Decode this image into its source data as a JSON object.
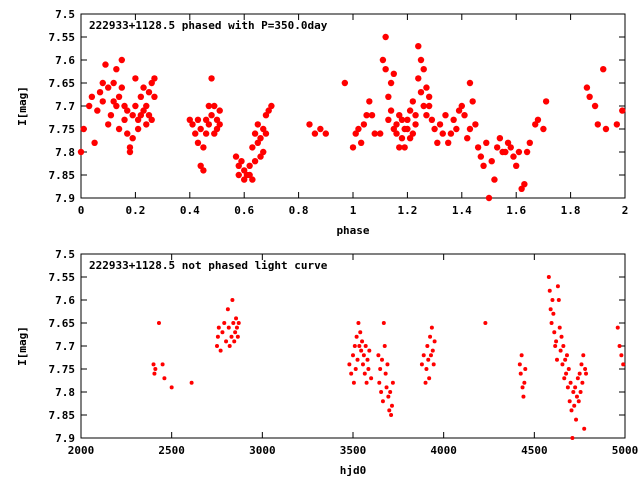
{
  "chart_data": [
    {
      "type": "scatter",
      "annotation": "222933+1128.5 phased with P=350.0day",
      "xlabel": "phase",
      "ylabel": "I[mag]",
      "xlim": [
        0,
        2
      ],
      "ylim": [
        7.9,
        7.5
      ],
      "y_inverted": true,
      "xticks": [
        0,
        0.2,
        0.4,
        0.6,
        0.8,
        1,
        1.2,
        1.4,
        1.6,
        1.8,
        2
      ],
      "xtick_labels": [
        "0",
        "0.2",
        "0.4",
        "0.6",
        "0.8",
        "1",
        "1.2",
        "1.4",
        "1.6",
        "1.8",
        "2"
      ],
      "yticks": [
        7.5,
        7.55,
        7.6,
        7.65,
        7.7,
        7.75,
        7.8,
        7.85,
        7.9
      ],
      "ytick_labels": [
        "7.5",
        "7.55",
        "7.6",
        "7.65",
        "7.7",
        "7.75",
        "7.8",
        "7.85",
        "7.9"
      ],
      "grid": false,
      "marker_color": "#ff0000",
      "marker": "filled-circle-large",
      "points": [
        [
          0.0,
          7.8
        ],
        [
          0.01,
          7.75
        ],
        [
          0.03,
          7.7
        ],
        [
          0.04,
          7.68
        ],
        [
          0.05,
          7.78
        ],
        [
          0.06,
          7.71
        ],
        [
          0.07,
          7.67
        ],
        [
          0.08,
          7.65
        ],
        [
          0.08,
          7.69
        ],
        [
          0.09,
          7.61
        ],
        [
          0.1,
          7.66
        ],
        [
          0.1,
          7.74
        ],
        [
          0.11,
          7.72
        ],
        [
          0.12,
          7.69
        ],
        [
          0.12,
          7.65
        ],
        [
          0.13,
          7.62
        ],
        [
          0.13,
          7.7
        ],
        [
          0.14,
          7.68
        ],
        [
          0.14,
          7.75
        ],
        [
          0.15,
          7.6
        ],
        [
          0.15,
          7.66
        ],
        [
          0.16,
          7.7
        ],
        [
          0.16,
          7.73
        ],
        [
          0.17,
          7.71
        ],
        [
          0.17,
          7.76
        ],
        [
          0.18,
          7.79
        ],
        [
          0.18,
          7.8
        ],
        [
          0.19,
          7.72
        ],
        [
          0.19,
          7.77
        ],
        [
          0.2,
          7.64
        ],
        [
          0.2,
          7.7
        ],
        [
          0.21,
          7.73
        ],
        [
          0.21,
          7.75
        ],
        [
          0.22,
          7.68
        ],
        [
          0.22,
          7.72
        ],
        [
          0.23,
          7.66
        ],
        [
          0.23,
          7.71
        ],
        [
          0.24,
          7.7
        ],
        [
          0.24,
          7.74
        ],
        [
          0.25,
          7.67
        ],
        [
          0.25,
          7.72
        ],
        [
          0.26,
          7.73
        ],
        [
          0.26,
          7.65
        ],
        [
          0.27,
          7.68
        ],
        [
          0.27,
          7.64
        ],
        [
          0.4,
          7.73
        ],
        [
          0.41,
          7.74
        ],
        [
          0.42,
          7.76
        ],
        [
          0.43,
          7.73
        ],
        [
          0.43,
          7.78
        ],
        [
          0.44,
          7.75
        ],
        [
          0.44,
          7.83
        ],
        [
          0.45,
          7.79
        ],
        [
          0.45,
          7.84
        ],
        [
          0.46,
          7.73
        ],
        [
          0.46,
          7.76
        ],
        [
          0.47,
          7.7
        ],
        [
          0.47,
          7.74
        ],
        [
          0.48,
          7.64
        ],
        [
          0.48,
          7.72
        ],
        [
          0.49,
          7.7
        ],
        [
          0.49,
          7.76
        ],
        [
          0.5,
          7.73
        ],
        [
          0.5,
          7.75
        ],
        [
          0.51,
          7.71
        ],
        [
          0.51,
          7.74
        ],
        [
          0.57,
          7.81
        ],
        [
          0.58,
          7.83
        ],
        [
          0.58,
          7.85
        ],
        [
          0.59,
          7.82
        ],
        [
          0.6,
          7.84
        ],
        [
          0.6,
          7.86
        ],
        [
          0.61,
          7.85
        ],
        [
          0.62,
          7.83
        ],
        [
          0.62,
          7.85
        ],
        [
          0.63,
          7.79
        ],
        [
          0.63,
          7.86
        ],
        [
          0.64,
          7.76
        ],
        [
          0.64,
          7.82
        ],
        [
          0.65,
          7.74
        ],
        [
          0.65,
          7.78
        ],
        [
          0.66,
          7.77
        ],
        [
          0.66,
          7.81
        ],
        [
          0.67,
          7.75
        ],
        [
          0.67,
          7.8
        ],
        [
          0.68,
          7.72
        ],
        [
          0.68,
          7.76
        ],
        [
          0.69,
          7.71
        ],
        [
          0.7,
          7.7
        ],
        [
          0.84,
          7.74
        ],
        [
          0.86,
          7.76
        ],
        [
          0.88,
          7.75
        ],
        [
          0.9,
          7.76
        ],
        [
          0.97,
          7.65
        ],
        [
          1.0,
          7.79
        ],
        [
          1.01,
          7.76
        ],
        [
          1.02,
          7.75
        ],
        [
          1.03,
          7.78
        ],
        [
          1.04,
          7.74
        ],
        [
          1.05,
          7.72
        ],
        [
          1.06,
          7.69
        ],
        [
          1.07,
          7.72
        ],
        [
          1.08,
          7.76
        ],
        [
          1.1,
          7.76
        ],
        [
          1.11,
          7.6
        ],
        [
          1.12,
          7.55
        ],
        [
          1.12,
          7.62
        ],
        [
          1.13,
          7.68
        ],
        [
          1.13,
          7.73
        ],
        [
          1.14,
          7.65
        ],
        [
          1.14,
          7.71
        ],
        [
          1.15,
          7.63
        ],
        [
          1.15,
          7.75
        ],
        [
          1.16,
          7.74
        ],
        [
          1.16,
          7.76
        ],
        [
          1.17,
          7.72
        ],
        [
          1.17,
          7.79
        ],
        [
          1.18,
          7.73
        ],
        [
          1.18,
          7.77
        ],
        [
          1.19,
          7.75
        ],
        [
          1.19,
          7.79
        ],
        [
          1.2,
          7.73
        ],
        [
          1.2,
          7.75
        ],
        [
          1.21,
          7.71
        ],
        [
          1.21,
          7.77
        ],
        [
          1.22,
          7.69
        ],
        [
          1.22,
          7.76
        ],
        [
          1.23,
          7.74
        ],
        [
          1.23,
          7.72
        ],
        [
          1.24,
          7.57
        ],
        [
          1.24,
          7.64
        ],
        [
          1.25,
          7.6
        ],
        [
          1.25,
          7.67
        ],
        [
          1.26,
          7.62
        ],
        [
          1.26,
          7.7
        ],
        [
          1.27,
          7.66
        ],
        [
          1.27,
          7.72
        ],
        [
          1.28,
          7.68
        ],
        [
          1.28,
          7.7
        ],
        [
          1.29,
          7.73
        ],
        [
          1.3,
          7.75
        ],
        [
          1.31,
          7.78
        ],
        [
          1.32,
          7.74
        ],
        [
          1.33,
          7.76
        ],
        [
          1.34,
          7.72
        ],
        [
          1.35,
          7.78
        ],
        [
          1.36,
          7.76
        ],
        [
          1.37,
          7.73
        ],
        [
          1.38,
          7.75
        ],
        [
          1.39,
          7.71
        ],
        [
          1.4,
          7.7
        ],
        [
          1.41,
          7.72
        ],
        [
          1.42,
          7.77
        ],
        [
          1.43,
          7.65
        ],
        [
          1.43,
          7.75
        ],
        [
          1.44,
          7.69
        ],
        [
          1.45,
          7.74
        ],
        [
          1.46,
          7.79
        ],
        [
          1.47,
          7.81
        ],
        [
          1.48,
          7.83
        ],
        [
          1.49,
          7.78
        ],
        [
          1.5,
          7.9
        ],
        [
          1.51,
          7.82
        ],
        [
          1.52,
          7.86
        ],
        [
          1.53,
          7.79
        ],
        [
          1.54,
          7.77
        ],
        [
          1.55,
          7.8
        ],
        [
          1.56,
          7.8
        ],
        [
          1.57,
          7.78
        ],
        [
          1.58,
          7.79
        ],
        [
          1.59,
          7.81
        ],
        [
          1.6,
          7.83
        ],
        [
          1.61,
          7.8
        ],
        [
          1.62,
          7.88
        ],
        [
          1.63,
          7.87
        ],
        [
          1.64,
          7.8
        ],
        [
          1.65,
          7.78
        ],
        [
          1.67,
          7.74
        ],
        [
          1.68,
          7.73
        ],
        [
          1.7,
          7.75
        ],
        [
          1.71,
          7.69
        ],
        [
          1.86,
          7.66
        ],
        [
          1.87,
          7.68
        ],
        [
          1.89,
          7.7
        ],
        [
          1.9,
          7.74
        ],
        [
          1.92,
          7.62
        ],
        [
          1.93,
          7.75
        ],
        [
          1.97,
          7.74
        ],
        [
          1.99,
          7.71
        ]
      ]
    },
    {
      "type": "scatter",
      "annotation": "222933+1128.5 not phased light curve",
      "xlabel": "hjd0",
      "ylabel": "I[mag]",
      "xlim": [
        2000,
        5000
      ],
      "ylim": [
        7.9,
        7.5
      ],
      "y_inverted": true,
      "xticks": [
        2000,
        2500,
        3000,
        3500,
        4000,
        4500,
        5000
      ],
      "xtick_labels": [
        "2000",
        "2500",
        "3000",
        "3500",
        "4000",
        "4500",
        "5000"
      ],
      "yticks": [
        7.5,
        7.55,
        7.6,
        7.65,
        7.7,
        7.75,
        7.8,
        7.85,
        7.9
      ],
      "ytick_labels": [
        "7.5",
        "7.55",
        "7.6",
        "7.65",
        "7.7",
        "7.75",
        "7.8",
        "7.85",
        "7.9"
      ],
      "grid": false,
      "marker_color": "#ff0000",
      "marker": "filled-circle-small",
      "points": [
        [
          2400,
          7.74
        ],
        [
          2405,
          7.76
        ],
        [
          2410,
          7.75
        ],
        [
          2430,
          7.65
        ],
        [
          2450,
          7.74
        ],
        [
          2460,
          7.77
        ],
        [
          2500,
          7.79
        ],
        [
          2610,
          7.78
        ],
        [
          2750,
          7.7
        ],
        [
          2755,
          7.68
        ],
        [
          2760,
          7.66
        ],
        [
          2770,
          7.71
        ],
        [
          2780,
          7.67
        ],
        [
          2790,
          7.65
        ],
        [
          2800,
          7.69
        ],
        [
          2810,
          7.62
        ],
        [
          2815,
          7.66
        ],
        [
          2820,
          7.7
        ],
        [
          2830,
          7.68
        ],
        [
          2835,
          7.6
        ],
        [
          2840,
          7.65
        ],
        [
          2845,
          7.69
        ],
        [
          2850,
          7.67
        ],
        [
          2855,
          7.64
        ],
        [
          2860,
          7.66
        ],
        [
          2865,
          7.68
        ],
        [
          2870,
          7.65
        ],
        [
          3480,
          7.74
        ],
        [
          3490,
          7.76
        ],
        [
          3500,
          7.72
        ],
        [
          3505,
          7.78
        ],
        [
          3510,
          7.7
        ],
        [
          3515,
          7.75
        ],
        [
          3520,
          7.68
        ],
        [
          3525,
          7.73
        ],
        [
          3530,
          7.65
        ],
        [
          3535,
          7.7
        ],
        [
          3540,
          7.67
        ],
        [
          3545,
          7.71
        ],
        [
          3550,
          7.69
        ],
        [
          3555,
          7.74
        ],
        [
          3560,
          7.72
        ],
        [
          3565,
          7.76
        ],
        [
          3570,
          7.7
        ],
        [
          3575,
          7.78
        ],
        [
          3580,
          7.73
        ],
        [
          3585,
          7.75
        ],
        [
          3590,
          7.71
        ],
        [
          3600,
          7.77
        ],
        [
          3640,
          7.72
        ],
        [
          3645,
          7.78
        ],
        [
          3650,
          7.75
        ],
        [
          3655,
          7.8
        ],
        [
          3660,
          7.73
        ],
        [
          3665,
          7.82
        ],
        [
          3670,
          7.65
        ],
        [
          3675,
          7.7
        ],
        [
          3680,
          7.76
        ],
        [
          3685,
          7.79
        ],
        [
          3690,
          7.74
        ],
        [
          3695,
          7.81
        ],
        [
          3700,
          7.84
        ],
        [
          3705,
          7.8
        ],
        [
          3710,
          7.85
        ],
        [
          3715,
          7.83
        ],
        [
          3720,
          7.78
        ],
        [
          3880,
          7.74
        ],
        [
          3890,
          7.72
        ],
        [
          3900,
          7.78
        ],
        [
          3905,
          7.75
        ],
        [
          3910,
          7.7
        ],
        [
          3915,
          7.73
        ],
        [
          3920,
          7.77
        ],
        [
          3925,
          7.68
        ],
        [
          3930,
          7.72
        ],
        [
          3935,
          7.66
        ],
        [
          3940,
          7.71
        ],
        [
          3945,
          7.74
        ],
        [
          3950,
          7.69
        ],
        [
          4230,
          7.65
        ],
        [
          4420,
          7.74
        ],
        [
          4425,
          7.76
        ],
        [
          4430,
          7.72
        ],
        [
          4435,
          7.79
        ],
        [
          4440,
          7.81
        ],
        [
          4445,
          7.78
        ],
        [
          4450,
          7.75
        ],
        [
          4580,
          7.55
        ],
        [
          4585,
          7.58
        ],
        [
          4590,
          7.62
        ],
        [
          4595,
          7.65
        ],
        [
          4600,
          7.6
        ],
        [
          4605,
          7.63
        ],
        [
          4610,
          7.67
        ],
        [
          4615,
          7.7
        ],
        [
          4620,
          7.69
        ],
        [
          4625,
          7.73
        ],
        [
          4630,
          7.57
        ],
        [
          4635,
          7.6
        ],
        [
          4640,
          7.66
        ],
        [
          4645,
          7.71
        ],
        [
          4650,
          7.68
        ],
        [
          4655,
          7.74
        ],
        [
          4660,
          7.7
        ],
        [
          4665,
          7.77
        ],
        [
          4670,
          7.73
        ],
        [
          4675,
          7.76
        ],
        [
          4680,
          7.72
        ],
        [
          4685,
          7.79
        ],
        [
          4690,
          7.75
        ],
        [
          4695,
          7.82
        ],
        [
          4700,
          7.78
        ],
        [
          4705,
          7.84
        ],
        [
          4710,
          7.9
        ],
        [
          4715,
          7.8
        ],
        [
          4720,
          7.83
        ],
        [
          4725,
          7.79
        ],
        [
          4730,
          7.86
        ],
        [
          4735,
          7.81
        ],
        [
          4740,
          7.77
        ],
        [
          4745,
          7.82
        ],
        [
          4750,
          7.76
        ],
        [
          4755,
          7.8
        ],
        [
          4760,
          7.74
        ],
        [
          4765,
          7.78
        ],
        [
          4770,
          7.72
        ],
        [
          4775,
          7.88
        ],
        [
          4780,
          7.75
        ],
        [
          4785,
          7.76
        ],
        [
          4960,
          7.66
        ],
        [
          4970,
          7.7
        ],
        [
          4980,
          7.72
        ],
        [
          4990,
          7.74
        ]
      ]
    }
  ]
}
